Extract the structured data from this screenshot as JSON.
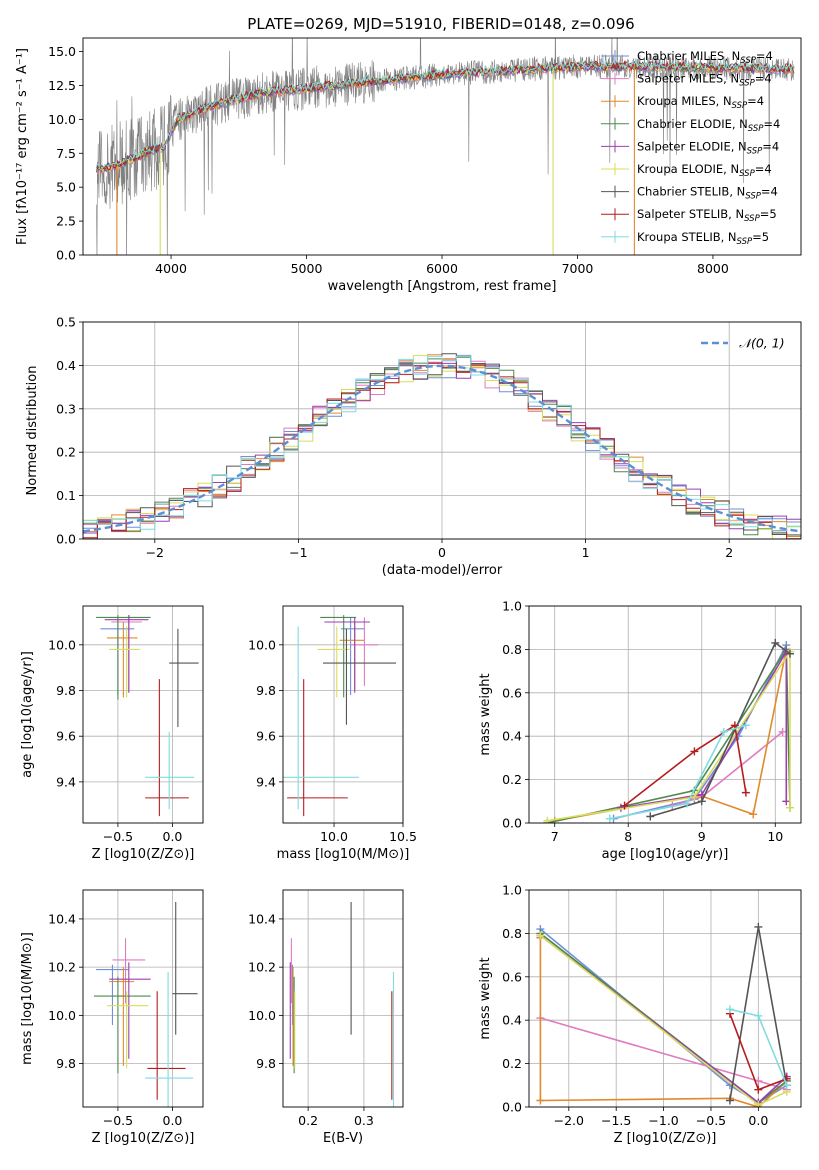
{
  "figure": {
    "title": "PLATE=0269, MJD=51910, FIBERID=0148, z=0.096"
  },
  "colors": {
    "Chabrier MILES": "#6f8fd9",
    "Salpeter MILES": "#e07bbf",
    "Kroupa MILES": "#e08a2c",
    "Chabrier ELODIE": "#4e8a4e",
    "Salpeter ELODIE": "#9b3fb0",
    "Kroupa ELODIE": "#d8dd5a",
    "Chabrier STELIB": "#555555",
    "Salpeter STELIB": "#b51c1c",
    "Kroupa STELIB": "#7fdbe0",
    "normal_curve": "#5b8fd6",
    "data_spectrum": "#808080"
  },
  "chart_data": [
    {
      "id": "spectrum",
      "type": "line",
      "xlabel": "wavelength [Angstrom, rest frame]",
      "ylabel": "Flux [fλ10⁻¹⁷ erg cm⁻² s⁻¹ A⁻¹]",
      "xlim": [
        3350,
        8650
      ],
      "ylim": [
        0,
        16
      ],
      "xticks": [
        4000,
        5000,
        6000,
        7000,
        8000
      ],
      "yticks": [
        0.0,
        2.5,
        5.0,
        7.5,
        10.0,
        12.5,
        15.0
      ],
      "legend_loc": "right",
      "legend": [
        "Chabrier MILES, N_SSP=4",
        "Salpeter MILES, N_SSP=4",
        "Kroupa MILES, N_SSP=4",
        "Chabrier ELODIE, N_SSP=4",
        "Salpeter ELODIE, N_SSP=4",
        "Kroupa ELODIE, N_SSP=4",
        "Chabrier STELIB, N_SSP=4",
        "Salpeter STELIB, N_SSP=5",
        "Kroupa STELIB, N_SSP=5"
      ],
      "continuum": {
        "x": [
          3450,
          3600,
          3800,
          3950,
          4050,
          4300,
          4600,
          5000,
          5500,
          6000,
          6500,
          7000,
          7500,
          8000,
          8600
        ],
        "y": [
          6.3,
          6.6,
          7.5,
          8.0,
          10.0,
          11.0,
          11.8,
          12.3,
          12.8,
          13.3,
          13.6,
          13.9,
          13.9,
          13.8,
          13.7
        ]
      }
    },
    {
      "id": "residuals",
      "type": "step",
      "xlabel": "(data-model)/error",
      "ylabel": "Normed distribution",
      "xlim": [
        -2.5,
        2.5
      ],
      "ylim": [
        0,
        0.5
      ],
      "xticks": [
        -2,
        -1,
        0,
        1,
        2
      ],
      "yticks": [
        0.0,
        0.1,
        0.2,
        0.3,
        0.4,
        0.5
      ],
      "bin_width": 0.1,
      "legend": [
        "𝒩(0,1)"
      ],
      "legend_loc": "upper right",
      "grid": true
    },
    {
      "id": "age_vs_Z",
      "type": "errorbar",
      "xlabel": "Z [log10(Z/Z⊙)]",
      "ylabel": "age [log10(age/yr)]",
      "xlim": [
        -0.82,
        0.28
      ],
      "ylim": [
        9.22,
        10.17
      ],
      "xticks": [
        -0.5,
        0.0
      ],
      "yticks": [
        9.4,
        9.6,
        9.8,
        10.0
      ],
      "grid": true,
      "points": [
        {
          "m": "Chabrier MILES",
          "x": -0.5,
          "xlo": -0.66,
          "xhi": -0.35,
          "y": 10.07,
          "ylo": 9.78,
          "yhi": 10.12
        },
        {
          "m": "Salpeter MILES",
          "x": -0.4,
          "xlo": -0.56,
          "xhi": -0.28,
          "y": 10.1,
          "ylo": 9.8,
          "yhi": 10.13
        },
        {
          "m": "Kroupa MILES",
          "x": -0.45,
          "xlo": -0.6,
          "xhi": -0.32,
          "y": 10.03,
          "ylo": 9.77,
          "yhi": 10.1
        },
        {
          "m": "Chabrier ELODIE",
          "x": -0.5,
          "xlo": -0.7,
          "xhi": -0.2,
          "y": 10.12,
          "ylo": 9.76,
          "yhi": 10.13
        },
        {
          "m": "Salpeter ELODIE",
          "x": -0.4,
          "xlo": -0.62,
          "xhi": -0.22,
          "y": 10.11,
          "ylo": 9.79,
          "yhi": 10.13
        },
        {
          "m": "Kroupa ELODIE",
          "x": -0.42,
          "xlo": -0.58,
          "xhi": -0.3,
          "y": 9.98,
          "ylo": 9.77,
          "yhi": 10.08
        },
        {
          "m": "Chabrier STELIB",
          "x": 0.05,
          "xlo": -0.03,
          "xhi": 0.24,
          "y": 9.92,
          "ylo": 9.64,
          "yhi": 10.07
        },
        {
          "m": "Salpeter STELIB",
          "x": -0.12,
          "xlo": -0.25,
          "xhi": 0.15,
          "y": 9.33,
          "ylo": 9.25,
          "yhi": 9.85
        },
        {
          "m": "Kroupa STELIB",
          "x": -0.03,
          "xlo": -0.25,
          "xhi": 0.2,
          "y": 9.42,
          "ylo": 9.28,
          "yhi": 9.62
        }
      ]
    },
    {
      "id": "age_vs_mass",
      "type": "errorbar",
      "xlabel": "mass [log10(M/M⊙)]",
      "ylabel": "",
      "xlim": [
        9.63,
        10.5
      ],
      "ylim": [
        9.22,
        10.17
      ],
      "xticks": [
        10.0,
        10.5
      ],
      "yticks": [
        9.4,
        9.6,
        9.8,
        10.0
      ],
      "grid": true,
      "points": [
        {
          "m": "Chabrier MILES",
          "x": 10.12,
          "xlo": 10.05,
          "xhi": 10.22,
          "y": 10.07,
          "ylo": 9.78,
          "yhi": 10.12
        },
        {
          "m": "Salpeter MILES",
          "x": 10.22,
          "xlo": 10.12,
          "xhi": 10.32,
          "y": 10.0,
          "ylo": 9.82,
          "yhi": 10.12
        },
        {
          "m": "Kroupa MILES",
          "x": 10.15,
          "xlo": 10.04,
          "xhi": 10.22,
          "y": 10.02,
          "ylo": 9.8,
          "yhi": 10.1
        },
        {
          "m": "Chabrier ELODIE",
          "x": 10.07,
          "xlo": 9.9,
          "xhi": 10.16,
          "y": 10.12,
          "ylo": 9.77,
          "yhi": 10.13
        },
        {
          "m": "Salpeter ELODIE",
          "x": 10.15,
          "xlo": 9.93,
          "xhi": 10.26,
          "y": 10.1,
          "ylo": 9.79,
          "yhi": 10.12
        },
        {
          "m": "Kroupa ELODIE",
          "x": 10.02,
          "xlo": 9.88,
          "xhi": 10.12,
          "y": 9.98,
          "ylo": 9.77,
          "yhi": 10.08
        },
        {
          "m": "Chabrier STELIB",
          "x": 10.09,
          "xlo": 9.92,
          "xhi": 10.45,
          "y": 9.92,
          "ylo": 9.65,
          "yhi": 10.07
        },
        {
          "m": "Salpeter STELIB",
          "x": 9.78,
          "xlo": 9.66,
          "xhi": 10.1,
          "y": 9.33,
          "ylo": 9.25,
          "yhi": 9.85
        },
        {
          "m": "Kroupa STELIB",
          "x": 9.74,
          "xlo": 9.63,
          "xhi": 10.18,
          "y": 9.42,
          "ylo": 9.28,
          "yhi": 10.08
        }
      ]
    },
    {
      "id": "weight_vs_age",
      "type": "line",
      "xlabel": "age [log10(age/yr)]",
      "ylabel": "mass weight",
      "xlim": [
        6.65,
        10.35
      ],
      "ylim": [
        0,
        1
      ],
      "xticks": [
        7,
        8,
        9,
        10
      ],
      "yticks": [
        0.0,
        0.2,
        0.4,
        0.6,
        0.8,
        1.0
      ],
      "grid": true,
      "series": [
        {
          "m": "Chabrier MILES",
          "x": [
            7.8,
            8.9,
            9.5,
            10.15
          ],
          "y": [
            0.02,
            0.11,
            0.4,
            0.82
          ]
        },
        {
          "m": "Salpeter MILES",
          "x": [
            8.6,
            9.0,
            10.1
          ],
          "y": [
            0.08,
            0.12,
            0.42
          ]
        },
        {
          "m": "Kroupa MILES",
          "x": [
            7.0,
            8.95,
            9.7,
            10.15
          ],
          "y": [
            0.01,
            0.13,
            0.04,
            0.8
          ]
        },
        {
          "m": "Chabrier ELODIE",
          "x": [
            6.9,
            8.9,
            10.15,
            10.2
          ],
          "y": [
            0.0,
            0.15,
            0.8,
            0.07
          ]
        },
        {
          "m": "Salpeter ELODIE",
          "x": [
            7.9,
            9.0,
            10.15,
            10.15
          ],
          "y": [
            0.07,
            0.13,
            0.79,
            0.1
          ]
        },
        {
          "m": "Kroupa ELODIE",
          "x": [
            6.9,
            8.9,
            10.2,
            10.2
          ],
          "y": [
            0.01,
            0.12,
            0.79,
            0.07
          ]
        },
        {
          "m": "Chabrier STELIB",
          "x": [
            8.3,
            9.0,
            10.0,
            10.2
          ],
          "y": [
            0.03,
            0.1,
            0.83,
            0.78
          ]
        },
        {
          "m": "Salpeter STELIB",
          "x": [
            7.95,
            8.9,
            9.45,
            9.6
          ],
          "y": [
            0.08,
            0.33,
            0.45,
            0.14
          ]
        },
        {
          "m": "Kroupa STELIB",
          "x": [
            7.75,
            8.8,
            9.3,
            9.6
          ],
          "y": [
            0.02,
            0.09,
            0.42,
            0.45
          ]
        }
      ]
    },
    {
      "id": "mass_vs_Z",
      "type": "errorbar",
      "xlabel": "Z [log10(Z/Z⊙)]",
      "ylabel": "mass [log10(M/M⊙)]",
      "xlim": [
        -0.82,
        0.28
      ],
      "ylim": [
        9.62,
        10.52
      ],
      "xticks": [
        -0.5,
        0.0
      ],
      "yticks": [
        9.8,
        10.0,
        10.2,
        10.4
      ],
      "grid": true,
      "points": [
        {
          "m": "Chabrier MILES",
          "x": -0.55,
          "xlo": -0.7,
          "xhi": -0.4,
          "y": 10.19,
          "ylo": 9.96,
          "yhi": 10.21
        },
        {
          "m": "Salpeter MILES",
          "x": -0.43,
          "xlo": -0.55,
          "xhi": -0.25,
          "y": 10.23,
          "ylo": 10.05,
          "yhi": 10.32
        },
        {
          "m": "Kroupa MILES",
          "x": -0.45,
          "xlo": -0.58,
          "xhi": -0.35,
          "y": 10.14,
          "ylo": 9.79,
          "yhi": 10.2
        },
        {
          "m": "Chabrier ELODIE",
          "x": -0.5,
          "xlo": -0.72,
          "xhi": -0.2,
          "y": 10.08,
          "ylo": 9.76,
          "yhi": 10.16
        },
        {
          "m": "Salpeter ELODIE",
          "x": -0.4,
          "xlo": -0.58,
          "xhi": -0.2,
          "y": 10.15,
          "ylo": 9.82,
          "yhi": 10.22
        },
        {
          "m": "Kroupa ELODIE",
          "x": -0.42,
          "xlo": -0.6,
          "xhi": -0.22,
          "y": 10.04,
          "ylo": 9.78,
          "yhi": 10.1
        },
        {
          "m": "Chabrier STELIB",
          "x": 0.03,
          "xlo": 0.0,
          "xhi": 0.23,
          "y": 10.09,
          "ylo": 9.92,
          "yhi": 10.47
        },
        {
          "m": "Salpeter STELIB",
          "x": -0.14,
          "xlo": -0.23,
          "xhi": 0.12,
          "y": 9.78,
          "ylo": 9.65,
          "yhi": 10.1
        },
        {
          "m": "Kroupa STELIB",
          "x": -0.04,
          "xlo": -0.25,
          "xhi": 0.19,
          "y": 9.74,
          "ylo": 9.62,
          "yhi": 10.18
        }
      ]
    },
    {
      "id": "mass_vs_EBV",
      "type": "errorbar",
      "xlabel": "E(B-V)",
      "ylabel": "",
      "xlim": [
        0.155,
        0.37
      ],
      "ylim": [
        9.62,
        10.52
      ],
      "xticks": [
        0.2,
        0.3
      ],
      "yticks": [
        9.8,
        10.0,
        10.2,
        10.4
      ],
      "grid": true,
      "points": [
        {
          "m": "Chabrier MILES",
          "x": 0.172,
          "y": 10.19,
          "ylo": 9.96,
          "yhi": 10.21
        },
        {
          "m": "Salpeter MILES",
          "x": 0.17,
          "y": 10.23,
          "ylo": 10.05,
          "yhi": 10.32
        },
        {
          "m": "Kroupa MILES",
          "x": 0.173,
          "y": 10.14,
          "ylo": 9.79,
          "yhi": 10.2
        },
        {
          "m": "Chabrier ELODIE",
          "x": 0.175,
          "y": 10.08,
          "ylo": 9.76,
          "yhi": 10.16
        },
        {
          "m": "Salpeter ELODIE",
          "x": 0.168,
          "y": 10.15,
          "ylo": 9.82,
          "yhi": 10.22
        },
        {
          "m": "Kroupa ELODIE",
          "x": 0.176,
          "y": 10.04,
          "ylo": 9.78,
          "yhi": 10.1
        },
        {
          "m": "Chabrier STELIB",
          "x": 0.277,
          "y": 10.09,
          "ylo": 9.92,
          "yhi": 10.47
        },
        {
          "m": "Salpeter STELIB",
          "x": 0.35,
          "y": 9.78,
          "ylo": 9.65,
          "yhi": 10.1
        },
        {
          "m": "Kroupa STELIB",
          "x": 0.353,
          "y": 9.74,
          "ylo": 9.62,
          "yhi": 10.18
        }
      ]
    },
    {
      "id": "weight_vs_Z",
      "type": "line",
      "xlabel": "Z [log10(Z/Z⊙)]",
      "ylabel": "mass weight",
      "xlim": [
        -2.42,
        0.45
      ],
      "ylim": [
        0,
        1
      ],
      "xticks": [
        -2.0,
        -1.5,
        -1.0,
        -0.5,
        0.0
      ],
      "yticks": [
        0.0,
        0.2,
        0.4,
        0.6,
        0.8,
        1.0
      ],
      "grid": true,
      "series": [
        {
          "m": "Chabrier MILES",
          "x": [
            -2.3,
            -0.3,
            0.0,
            0.3
          ],
          "y": [
            0.82,
            0.1,
            0.02,
            0.1
          ]
        },
        {
          "m": "Salpeter MILES",
          "x": [
            -2.3,
            0.0,
            0.3
          ],
          "y": [
            0.41,
            0.12,
            0.08
          ]
        },
        {
          "m": "Kroupa MILES",
          "x": [
            -2.3,
            -2.3,
            -0.3,
            0.0,
            0.3
          ],
          "y": [
            0.78,
            0.03,
            0.04,
            0.0,
            0.12
          ]
        },
        {
          "m": "Chabrier ELODIE",
          "x": [
            -2.3,
            0.0,
            0.3
          ],
          "y": [
            0.8,
            0.02,
            0.12
          ]
        },
        {
          "m": "Salpeter ELODIE",
          "x": [
            -2.3,
            0.0,
            0.3
          ],
          "y": [
            0.79,
            0.02,
            0.14
          ]
        },
        {
          "m": "Kroupa ELODIE",
          "x": [
            -2.3,
            0.0,
            0.3
          ],
          "y": [
            0.79,
            0.01,
            0.07
          ]
        },
        {
          "m": "Chabrier STELIB",
          "x": [
            -0.3,
            0.0,
            0.3
          ],
          "y": [
            0.03,
            0.83,
            0.1
          ]
        },
        {
          "m": "Salpeter STELIB",
          "x": [
            -0.3,
            0.0,
            0.3
          ],
          "y": [
            0.43,
            0.08,
            0.13
          ]
        },
        {
          "m": "Kroupa STELIB",
          "x": [
            -0.3,
            0.0,
            0.3
          ],
          "y": [
            0.45,
            0.42,
            0.1
          ]
        }
      ]
    }
  ]
}
